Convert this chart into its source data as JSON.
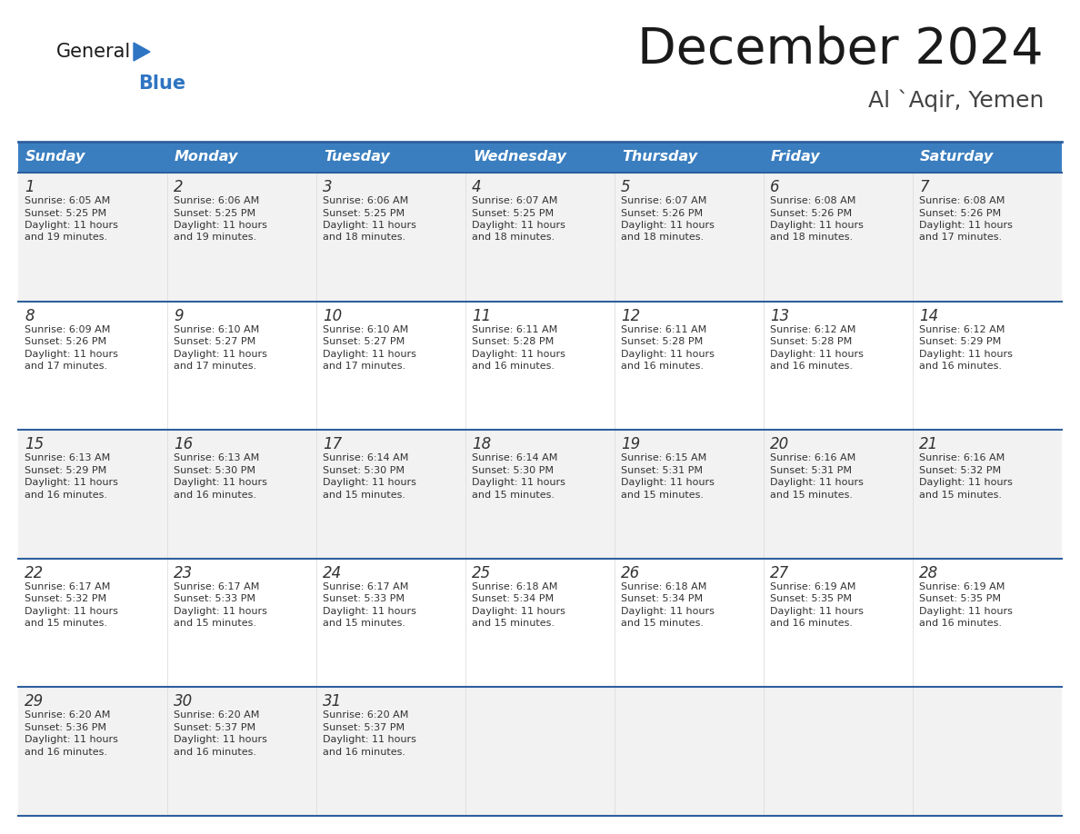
{
  "title": "December 2024",
  "subtitle": "Al `Aqir, Yemen",
  "days_of_week": [
    "Sunday",
    "Monday",
    "Tuesday",
    "Wednesday",
    "Thursday",
    "Friday",
    "Saturday"
  ],
  "header_bg": "#3a7ebf",
  "header_text": "#ffffff",
  "row_bg_odd": "#f2f2f2",
  "row_bg_even": "#ffffff",
  "cell_border_color": "#2e5f9e",
  "day_num_color": "#333333",
  "cell_text_color": "#333333",
  "title_color": "#1a1a1a",
  "subtitle_color": "#444444",
  "logo_general_color": "#1a1a1a",
  "logo_blue_color": "#2e75c3",
  "calendar_data": [
    [
      {
        "day": 1,
        "sunrise": "6:05 AM",
        "sunset": "5:25 PM",
        "daylight_hours": 11,
        "daylight_minutes": 19
      },
      {
        "day": 2,
        "sunrise": "6:06 AM",
        "sunset": "5:25 PM",
        "daylight_hours": 11,
        "daylight_minutes": 19
      },
      {
        "day": 3,
        "sunrise": "6:06 AM",
        "sunset": "5:25 PM",
        "daylight_hours": 11,
        "daylight_minutes": 18
      },
      {
        "day": 4,
        "sunrise": "6:07 AM",
        "sunset": "5:25 PM",
        "daylight_hours": 11,
        "daylight_minutes": 18
      },
      {
        "day": 5,
        "sunrise": "6:07 AM",
        "sunset": "5:26 PM",
        "daylight_hours": 11,
        "daylight_minutes": 18
      },
      {
        "day": 6,
        "sunrise": "6:08 AM",
        "sunset": "5:26 PM",
        "daylight_hours": 11,
        "daylight_minutes": 18
      },
      {
        "day": 7,
        "sunrise": "6:08 AM",
        "sunset": "5:26 PM",
        "daylight_hours": 11,
        "daylight_minutes": 17
      }
    ],
    [
      {
        "day": 8,
        "sunrise": "6:09 AM",
        "sunset": "5:26 PM",
        "daylight_hours": 11,
        "daylight_minutes": 17
      },
      {
        "day": 9,
        "sunrise": "6:10 AM",
        "sunset": "5:27 PM",
        "daylight_hours": 11,
        "daylight_minutes": 17
      },
      {
        "day": 10,
        "sunrise": "6:10 AM",
        "sunset": "5:27 PM",
        "daylight_hours": 11,
        "daylight_minutes": 17
      },
      {
        "day": 11,
        "sunrise": "6:11 AM",
        "sunset": "5:28 PM",
        "daylight_hours": 11,
        "daylight_minutes": 16
      },
      {
        "day": 12,
        "sunrise": "6:11 AM",
        "sunset": "5:28 PM",
        "daylight_hours": 11,
        "daylight_minutes": 16
      },
      {
        "day": 13,
        "sunrise": "6:12 AM",
        "sunset": "5:28 PM",
        "daylight_hours": 11,
        "daylight_minutes": 16
      },
      {
        "day": 14,
        "sunrise": "6:12 AM",
        "sunset": "5:29 PM",
        "daylight_hours": 11,
        "daylight_minutes": 16
      }
    ],
    [
      {
        "day": 15,
        "sunrise": "6:13 AM",
        "sunset": "5:29 PM",
        "daylight_hours": 11,
        "daylight_minutes": 16
      },
      {
        "day": 16,
        "sunrise": "6:13 AM",
        "sunset": "5:30 PM",
        "daylight_hours": 11,
        "daylight_minutes": 16
      },
      {
        "day": 17,
        "sunrise": "6:14 AM",
        "sunset": "5:30 PM",
        "daylight_hours": 11,
        "daylight_minutes": 15
      },
      {
        "day": 18,
        "sunrise": "6:14 AM",
        "sunset": "5:30 PM",
        "daylight_hours": 11,
        "daylight_minutes": 15
      },
      {
        "day": 19,
        "sunrise": "6:15 AM",
        "sunset": "5:31 PM",
        "daylight_hours": 11,
        "daylight_minutes": 15
      },
      {
        "day": 20,
        "sunrise": "6:16 AM",
        "sunset": "5:31 PM",
        "daylight_hours": 11,
        "daylight_minutes": 15
      },
      {
        "day": 21,
        "sunrise": "6:16 AM",
        "sunset": "5:32 PM",
        "daylight_hours": 11,
        "daylight_minutes": 15
      }
    ],
    [
      {
        "day": 22,
        "sunrise": "6:17 AM",
        "sunset": "5:32 PM",
        "daylight_hours": 11,
        "daylight_minutes": 15
      },
      {
        "day": 23,
        "sunrise": "6:17 AM",
        "sunset": "5:33 PM",
        "daylight_hours": 11,
        "daylight_minutes": 15
      },
      {
        "day": 24,
        "sunrise": "6:17 AM",
        "sunset": "5:33 PM",
        "daylight_hours": 11,
        "daylight_minutes": 15
      },
      {
        "day": 25,
        "sunrise": "6:18 AM",
        "sunset": "5:34 PM",
        "daylight_hours": 11,
        "daylight_minutes": 15
      },
      {
        "day": 26,
        "sunrise": "6:18 AM",
        "sunset": "5:34 PM",
        "daylight_hours": 11,
        "daylight_minutes": 15
      },
      {
        "day": 27,
        "sunrise": "6:19 AM",
        "sunset": "5:35 PM",
        "daylight_hours": 11,
        "daylight_minutes": 16
      },
      {
        "day": 28,
        "sunrise": "6:19 AM",
        "sunset": "5:35 PM",
        "daylight_hours": 11,
        "daylight_minutes": 16
      }
    ],
    [
      {
        "day": 29,
        "sunrise": "6:20 AM",
        "sunset": "5:36 PM",
        "daylight_hours": 11,
        "daylight_minutes": 16
      },
      {
        "day": 30,
        "sunrise": "6:20 AM",
        "sunset": "5:37 PM",
        "daylight_hours": 11,
        "daylight_minutes": 16
      },
      {
        "day": 31,
        "sunrise": "6:20 AM",
        "sunset": "5:37 PM",
        "daylight_hours": 11,
        "daylight_minutes": 16
      },
      null,
      null,
      null,
      null
    ]
  ]
}
